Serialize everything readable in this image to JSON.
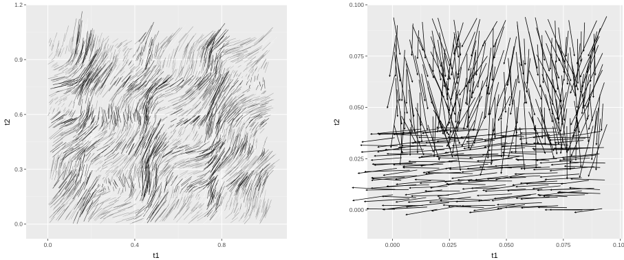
{
  "chart_data": [
    {
      "type": "flow-field",
      "title": "",
      "xlabel": "t1",
      "ylabel": "t2",
      "xlim": [
        -0.1,
        1.1
      ],
      "ylim": [
        -0.08,
        1.2
      ],
      "x_ticks": [
        0.0,
        0.4,
        0.8
      ],
      "x_tick_labels": [
        "0.0",
        "0.4",
        "0.8"
      ],
      "y_ticks": [
        0.0,
        0.3,
        0.6,
        0.9,
        1.2
      ],
      "y_tick_labels": [
        "0.0",
        "0.3",
        "0.6",
        "0.9",
        "1.2"
      ],
      "grid": true,
      "panel_background": "#ebebeb",
      "mark_color": "#000000",
      "grid_origin": [
        0.0,
        0.0
      ],
      "grid_extent": [
        1.0,
        1.0
      ],
      "band_edges_x": [
        0.15,
        0.45,
        0.75
      ],
      "band_edges_y": [
        0.2,
        0.38,
        0.55,
        0.75
      ]
    },
    {
      "type": "vector-field",
      "title": "",
      "xlabel": "t1",
      "ylabel": "t2",
      "xlim": [
        -0.011,
        0.101
      ],
      "ylim": [
        -0.014,
        0.1
      ],
      "x_ticks": [
        0.0,
        0.025,
        0.05,
        0.075,
        0.1
      ],
      "x_tick_labels": [
        "0.000",
        "0.025",
        "0.050",
        "0.075",
        "0.100"
      ],
      "y_ticks": [
        0.0,
        0.025,
        0.05,
        0.075,
        0.1
      ],
      "y_tick_labels": [
        "0.000",
        "0.025",
        "0.050",
        "0.075",
        "0.100"
      ],
      "grid": true,
      "panel_background": "#ebebeb",
      "arrow_color": "#000000",
      "grid_origin": [
        0.0,
        0.0
      ],
      "grid_extent": [
        0.095,
        0.095
      ],
      "regions": [
        {
          "y_range": [
            -0.01,
            0.04
          ],
          "direction": "leftward, slightly downward"
        },
        {
          "y_range": [
            0.04,
            0.1
          ],
          "direction": "downward"
        }
      ]
    }
  ]
}
